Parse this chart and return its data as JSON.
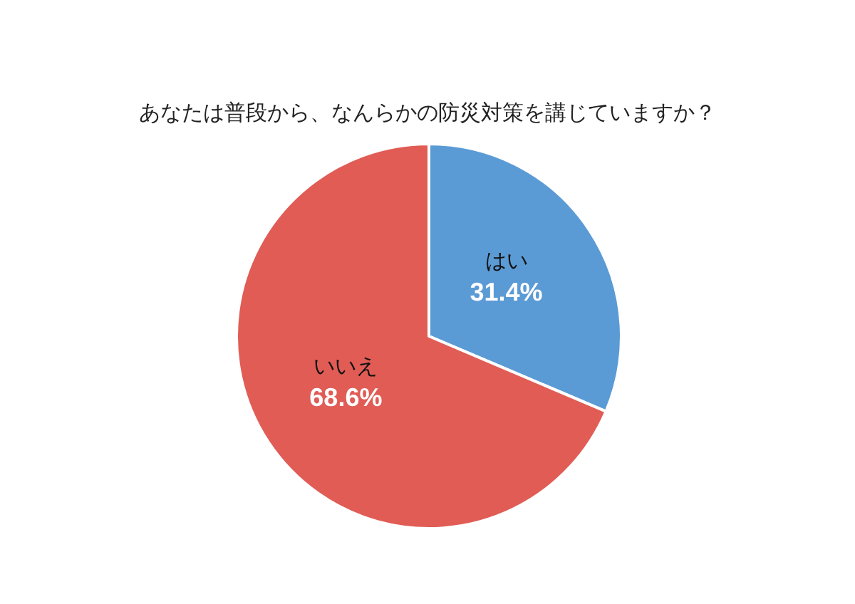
{
  "chart_data": {
    "type": "pie",
    "title": "あなたは普段から、なんらかの防災対策を講じていますか？",
    "categories": [
      "はい",
      "いいえ"
    ],
    "values": [
      31.4,
      68.6
    ],
    "colors": [
      "#5b9bd5",
      "#e05c55"
    ],
    "value_labels": [
      "31.4%",
      "68.6%"
    ]
  }
}
